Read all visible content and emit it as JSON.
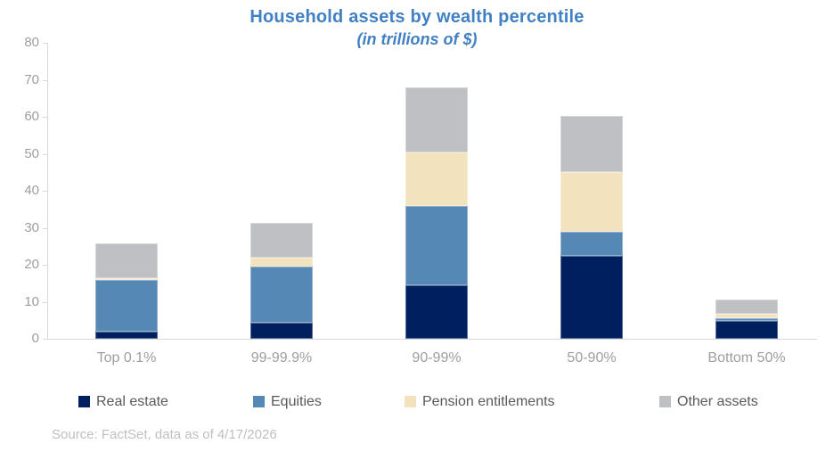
{
  "chart_data": {
    "type": "bar",
    "stacked": true,
    "title": "Household assets by wealth percentile",
    "subtitle": "(in trillions of $)",
    "xlabel": "",
    "ylabel": "",
    "ylim": [
      0,
      80
    ],
    "yticks": [
      0,
      10,
      20,
      30,
      40,
      50,
      60,
      70,
      80
    ],
    "grid": false,
    "legend_position": "bottom",
    "categories": [
      "Top 0.1%",
      "99-99.9%",
      "90-99%",
      "50-90%",
      "Bottom 50%"
    ],
    "series": [
      {
        "name": "Real estate",
        "color": "#001f5f",
        "values": [
          2.0,
          4.4,
          14.5,
          22.3,
          4.7
        ]
      },
      {
        "name": "Equities",
        "color": "#5588b5",
        "values": [
          13.9,
          15.0,
          21.5,
          6.5,
          0.8
        ]
      },
      {
        "name": "Pension entitlements",
        "color": "#f2e3be",
        "values": [
          0.6,
          2.6,
          14.4,
          16.3,
          1.2
        ]
      },
      {
        "name": "Other assets",
        "color": "#bec0c3",
        "values": [
          9.3,
          9.3,
          17.6,
          15.1,
          3.8
        ]
      }
    ],
    "totals": [
      25.8,
      31.3,
      68.0,
      60.2,
      10.5
    ]
  },
  "source": "Source: FactSet, data as of 4/17/2026",
  "colors": {
    "title": "#4181c3",
    "axis_line": "#d9d9d9",
    "axis_label": "#9e9e9e",
    "legend_label": "#595959",
    "source": "#bfbfbf"
  }
}
